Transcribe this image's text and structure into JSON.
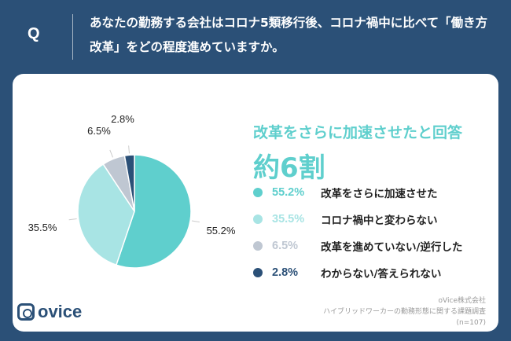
{
  "header": {
    "q_label": "Q",
    "question": "あなたの勤務する会社はコロナ5類移行後、コロナ禍中に比べて「働き方改革」をどの程度進めていますか。"
  },
  "summary": {
    "headline": "改革をさらに加速させたと回答",
    "big": "約6割"
  },
  "chart_data": {
    "type": "pie",
    "title": "",
    "slices": [
      {
        "label": "改革をさらに加速させた",
        "value": 55.2,
        "display": "55.2%",
        "color": "#5fcfcd"
      },
      {
        "label": "コロナ禍中と変わらない",
        "value": 35.5,
        "display": "35.5%",
        "color": "#a8e4e4"
      },
      {
        "label": "改革を進めていない/逆行した",
        "value": 6.5,
        "display": "6.5%",
        "color": "#bfc7d2"
      },
      {
        "label": "わからない/答えられない",
        "value": 2.8,
        "display": "2.8%",
        "color": "#2b5077"
      }
    ]
  },
  "footer": {
    "logo": "ovice",
    "source_line1": "oVice株式会社",
    "source_line2": "ハイブリッドワーカーの勤務形態に関する課題調査",
    "source_line3": "(n=107)"
  }
}
